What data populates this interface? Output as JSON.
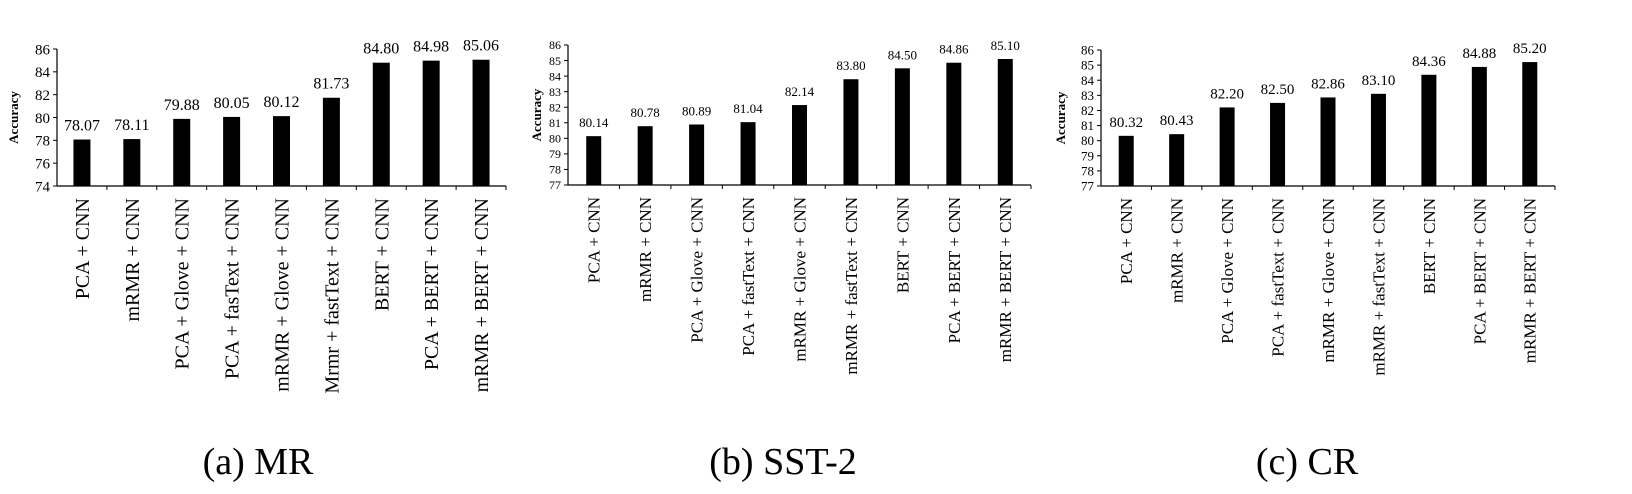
{
  "chart_data": [
    {
      "type": "bar",
      "caption": "(a) MR",
      "ylabel": "Accuracy",
      "ylim": [
        74,
        86
      ],
      "yticks": [
        74,
        76,
        78,
        80,
        82,
        84,
        86
      ],
      "categories": [
        "PCA + CNN",
        "mRMR + CNN",
        "PCA + Glove + CNN",
        "PCA + fasText + CNN",
        "mRMR + Glove + CNN",
        "Mrmr + fastText + CNN",
        "BERT + CNN",
        "PCA + BERT + CNN",
        "mRMR + BERT + CNN"
      ],
      "values": [
        78.07,
        78.11,
        79.88,
        80.05,
        80.12,
        81.73,
        84.8,
        84.98,
        85.06
      ],
      "value_labels": [
        "78.07",
        "78.11",
        "79.88",
        "80.05",
        "80.12",
        "81.73",
        "84.80",
        "84.98",
        "85.06"
      ],
      "bar_color": "#000000"
    },
    {
      "type": "bar",
      "caption": "(b) SST-2",
      "ylabel": "Accuracy",
      "ylim": [
        77,
        86
      ],
      "yticks": [
        77,
        78,
        79,
        80,
        81,
        82,
        83,
        84,
        85,
        86
      ],
      "categories": [
        "PCA + CNN",
        "mRMR + CNN",
        "PCA + Glove + CNN",
        "PCA + fastText + CNN",
        "mRMR + Glove + CNN",
        "mRMR + fastText + CNN",
        "BERT + CNN",
        "PCA + BERT + CNN",
        "mRMR + BERT + CNN"
      ],
      "values": [
        80.14,
        80.78,
        80.89,
        81.04,
        82.14,
        83.8,
        84.5,
        84.86,
        85.1
      ],
      "value_labels": [
        "80.14",
        "80.78",
        "80.89",
        "81.04",
        "82.14",
        "83.80",
        "84.50",
        "84.86",
        "85.10"
      ],
      "bar_color": "#000000"
    },
    {
      "type": "bar",
      "caption": "(c) CR",
      "ylabel": "Accuracy",
      "ylim": [
        77,
        86
      ],
      "yticks": [
        77,
        78,
        79,
        80,
        81,
        82,
        83,
        84,
        85,
        86
      ],
      "categories": [
        "PCA + CNN",
        "mRMR + CNN",
        "PCA + Glove + CNN",
        "PCA + fastText + CNN",
        "mRMR + Glove + CNN",
        "mRMR + fastText + CNN",
        "BERT + CNN",
        "PCA + BERT + CNN",
        "mRMR + BERT + CNN"
      ],
      "values": [
        80.32,
        80.43,
        82.2,
        82.5,
        82.86,
        83.1,
        84.36,
        84.88,
        85.2
      ],
      "value_labels": [
        "80.32",
        "80.43",
        "82.20",
        "82.50",
        "82.86",
        "83.10",
        "84.36",
        "84.88",
        "85.20"
      ],
      "bar_color": "#000000"
    }
  ]
}
